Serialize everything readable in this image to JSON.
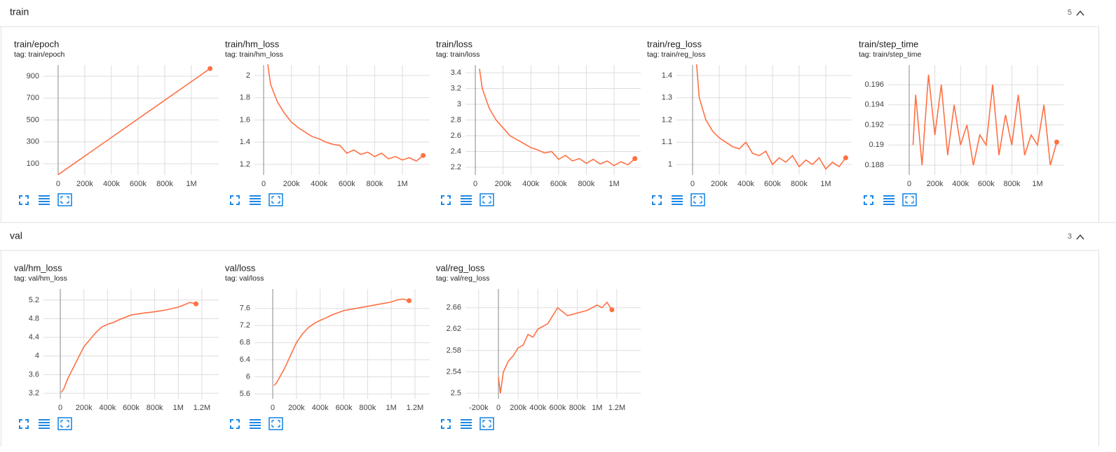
{
  "sections": [
    {
      "title": "train",
      "count": 5,
      "chart_data": [
        {
          "type": "line",
          "title": "train/epoch",
          "subtitle": "tag: train/epoch",
          "x": [
            0,
            1140000
          ],
          "series": [
            {
              "color": "#ff7043",
              "values": [
                0,
                970
              ]
            }
          ],
          "xlim": [
            -110000,
            1205000
          ],
          "ylim": [
            -2,
            1002
          ],
          "xticks": [
            0,
            {
              "value": 200000,
              "label": "200k"
            },
            {
              "value": 400000,
              "label": "400k"
            },
            {
              "value": 600000,
              "label": "600k"
            },
            {
              "value": 800000,
              "label": "800k"
            },
            {
              "value": 1000000,
              "label": "1M"
            }
          ],
          "yticks": [
            100,
            300,
            500,
            700,
            900
          ],
          "grid": true
        },
        {
          "type": "line",
          "title": "train/hm_loss",
          "subtitle": "tag: train/hm_loss",
          "x": [
            30000,
            50000,
            100000,
            150000,
            200000,
            250000,
            300000,
            350000,
            400000,
            450000,
            500000,
            550000,
            600000,
            650000,
            700000,
            750000,
            800000,
            850000,
            900000,
            950000,
            1000000,
            1050000,
            1100000,
            1150000
          ],
          "series": [
            {
              "color": "#ff7043",
              "values": [
                2.1,
                1.92,
                1.76,
                1.66,
                1.58,
                1.53,
                1.49,
                1.45,
                1.43,
                1.4,
                1.38,
                1.37,
                1.3,
                1.33,
                1.29,
                1.31,
                1.27,
                1.3,
                1.25,
                1.27,
                1.24,
                1.26,
                1.23,
                1.28
              ]
            }
          ],
          "xlim": [
            -66000,
            1197000
          ],
          "ylim": [
            1.105,
            2.094
          ],
          "xticks": [
            0,
            {
              "value": 200000,
              "label": "200k"
            },
            {
              "value": 400000,
              "label": "400k"
            },
            {
              "value": 600000,
              "label": "600k"
            },
            {
              "value": 800000,
              "label": "800k"
            },
            {
              "value": 1000000,
              "label": "1M"
            }
          ],
          "yticks": [
            1.2,
            1.4,
            1.6,
            1.8,
            2
          ],
          "grid": true
        },
        {
          "type": "line",
          "title": "train/loss",
          "subtitle": "tag: train/loss",
          "x": [
            30000,
            50000,
            100000,
            150000,
            200000,
            250000,
            300000,
            350000,
            400000,
            450000,
            500000,
            550000,
            600000,
            650000,
            700000,
            750000,
            800000,
            850000,
            900000,
            950000,
            1000000,
            1050000,
            1100000,
            1150000
          ],
          "series": [
            {
              "color": "#ff7043",
              "values": [
                3.45,
                3.2,
                2.95,
                2.8,
                2.7,
                2.6,
                2.55,
                2.5,
                2.45,
                2.42,
                2.38,
                2.4,
                2.3,
                2.35,
                2.28,
                2.31,
                2.25,
                2.3,
                2.24,
                2.28,
                2.22,
                2.27,
                2.23,
                2.31
              ]
            }
          ],
          "xlim": [
            -71000,
            1192000
          ],
          "ylim": [
            2.102,
            3.498
          ],
          "xticks": [
            0,
            {
              "value": 200000,
              "label": "200k"
            },
            {
              "value": 400000,
              "label": "400k"
            },
            {
              "value": 600000,
              "label": "600k"
            },
            {
              "value": 800000,
              "label": "800k"
            },
            {
              "value": 1000000,
              "label": "1M"
            }
          ],
          "yticks": [
            2.2,
            2.4,
            2.6,
            2.8,
            3,
            3.2,
            3.4
          ],
          "grid": true
        },
        {
          "type": "line",
          "title": "train/reg_loss",
          "subtitle": "tag: train/reg_loss",
          "x": [
            30000,
            50000,
            100000,
            150000,
            200000,
            250000,
            300000,
            350000,
            400000,
            450000,
            500000,
            550000,
            600000,
            650000,
            700000,
            750000,
            800000,
            850000,
            900000,
            950000,
            1000000,
            1050000,
            1100000,
            1150000
          ],
          "series": [
            {
              "color": "#ff7043",
              "values": [
                1.45,
                1.3,
                1.2,
                1.15,
                1.12,
                1.1,
                1.08,
                1.07,
                1.1,
                1.05,
                1.04,
                1.06,
                1.0,
                1.03,
                1.01,
                1.04,
                0.99,
                1.02,
                1.0,
                1.03,
                0.98,
                1.01,
                0.99,
                1.03
              ]
            }
          ],
          "xlim": [
            -121000,
            1195000
          ],
          "ylim": [
            0.953,
            1.447
          ],
          "xticks": [
            0,
            {
              "value": 200000,
              "label": "200k"
            },
            {
              "value": 400000,
              "label": "400k"
            },
            {
              "value": 600000,
              "label": "600k"
            },
            {
              "value": 800000,
              "label": "800k"
            },
            {
              "value": 1000000,
              "label": "1M"
            }
          ],
          "yticks": [
            1,
            1.1,
            1.2,
            1.3,
            1.4
          ],
          "grid": true
        },
        {
          "type": "line",
          "title": "train/step_time",
          "subtitle": "tag: train/step_time",
          "x": [
            30000,
            50000,
            100000,
            150000,
            200000,
            250000,
            300000,
            350000,
            400000,
            450000,
            500000,
            550000,
            600000,
            650000,
            700000,
            750000,
            800000,
            850000,
            900000,
            950000,
            1000000,
            1050000,
            1100000,
            1150000
          ],
          "series": [
            {
              "color": "#ff7043",
              "values": [
                0.19,
                0.195,
                0.188,
                0.197,
                0.191,
                0.196,
                0.189,
                0.194,
                0.19,
                0.192,
                0.188,
                0.191,
                0.19,
                0.196,
                0.189,
                0.193,
                0.19,
                0.195,
                0.189,
                0.191,
                0.19,
                0.194,
                0.188,
                0.1903
              ]
            }
          ],
          "xlim": [
            -164000,
            1202000
          ],
          "ylim": [
            0.18703,
            0.19795
          ],
          "xticks": [
            0,
            {
              "value": 200000,
              "label": "200k"
            },
            {
              "value": 400000,
              "label": "400k"
            },
            {
              "value": 600000,
              "label": "600k"
            },
            {
              "value": 800000,
              "label": "800k"
            },
            {
              "value": 1000000,
              "label": "1M"
            }
          ],
          "yticks": [
            0.188,
            0.19,
            0.192,
            0.194,
            0.196
          ],
          "grid": true
        }
      ]
    },
    {
      "title": "val",
      "count": 3,
      "chart_data": [
        {
          "type": "line",
          "title": "val/hm_loss",
          "subtitle": "tag: val/hm_loss",
          "x": [
            10000,
            30000,
            60000,
            100000,
            150000,
            200000,
            250000,
            300000,
            350000,
            400000,
            450000,
            500000,
            600000,
            700000,
            800000,
            900000,
            1000000,
            1050000,
            1100000,
            1150000
          ],
          "series": [
            {
              "color": "#ff7043",
              "values": [
                3.22,
                3.3,
                3.5,
                3.7,
                3.95,
                4.2,
                4.35,
                4.5,
                4.62,
                4.68,
                4.72,
                4.78,
                4.88,
                4.92,
                4.95,
                4.99,
                5.05,
                5.1,
                5.15,
                5.12
              ]
            }
          ],
          "xlim": [
            -143000,
            1343000
          ],
          "ylim": [
            3.081,
            5.439
          ],
          "xticks": [
            0,
            {
              "value": 200000,
              "label": "200k"
            },
            {
              "value": 400000,
              "label": "400k"
            },
            {
              "value": 600000,
              "label": "600k"
            },
            {
              "value": 800000,
              "label": "800k"
            },
            {
              "value": 1000000,
              "label": "1M"
            },
            {
              "value": 1200000,
              "label": "1.2M"
            }
          ],
          "yticks": [
            3.2,
            3.6,
            4,
            4.4,
            4.8,
            5.2
          ],
          "grid": true
        },
        {
          "type": "line",
          "title": "val/loss",
          "subtitle": "tag: val/loss",
          "x": [
            10000,
            30000,
            60000,
            100000,
            150000,
            200000,
            250000,
            300000,
            350000,
            400000,
            450000,
            500000,
            600000,
            700000,
            800000,
            900000,
            1000000,
            1050000,
            1100000,
            1150000
          ],
          "series": [
            {
              "color": "#ff7043",
              "values": [
                5.8,
                5.85,
                6.0,
                6.2,
                6.5,
                6.8,
                7.0,
                7.15,
                7.25,
                7.32,
                7.38,
                7.45,
                7.55,
                7.6,
                7.65,
                7.7,
                7.75,
                7.8,
                7.82,
                7.78
              ]
            }
          ],
          "xlim": [
            -154000,
            1324000
          ],
          "ylim": [
            5.486,
            8.055
          ],
          "xticks": [
            0,
            {
              "value": 200000,
              "label": "200k"
            },
            {
              "value": 400000,
              "label": "400k"
            },
            {
              "value": 600000,
              "label": "600k"
            },
            {
              "value": 800000,
              "label": "800k"
            },
            {
              "value": 1000000,
              "label": "1M"
            },
            {
              "value": 1200000,
              "label": "1.2M"
            }
          ],
          "yticks": [
            5.6,
            6,
            6.4,
            6.8,
            7.2,
            7.6
          ],
          "grid": true
        },
        {
          "type": "line",
          "title": "val/reg_loss",
          "subtitle": "tag: val/reg_loss",
          "x": [
            0,
            20000,
            50000,
            100000,
            150000,
            200000,
            250000,
            300000,
            350000,
            400000,
            450000,
            500000,
            600000,
            700000,
            800000,
            900000,
            1000000,
            1050000,
            1100000,
            1150000
          ],
          "series": [
            {
              "color": "#ff7043",
              "values": [
                2.53,
                2.5,
                2.54,
                2.56,
                2.57,
                2.585,
                2.59,
                2.61,
                2.605,
                2.62,
                2.625,
                2.63,
                2.66,
                2.645,
                2.65,
                2.655,
                2.665,
                2.66,
                2.67,
                2.656
              ]
            }
          ],
          "xlim": [
            -334000,
            1442000
          ],
          "ylim": [
            2.4896,
            2.695
          ],
          "xticks": [
            {
              "value": -200000,
              "label": "-200k"
            },
            0,
            {
              "value": 200000,
              "label": "200k"
            },
            {
              "value": 400000,
              "label": "400k"
            },
            {
              "value": 600000,
              "label": "600k"
            },
            {
              "value": 800000,
              "label": "800k"
            },
            {
              "value": 1000000,
              "label": "1M"
            },
            {
              "value": 1200000,
              "label": "1.2M"
            }
          ],
          "yticks": [
            2.5,
            2.54,
            2.58,
            2.62,
            2.66
          ],
          "grid": true
        }
      ]
    }
  ]
}
